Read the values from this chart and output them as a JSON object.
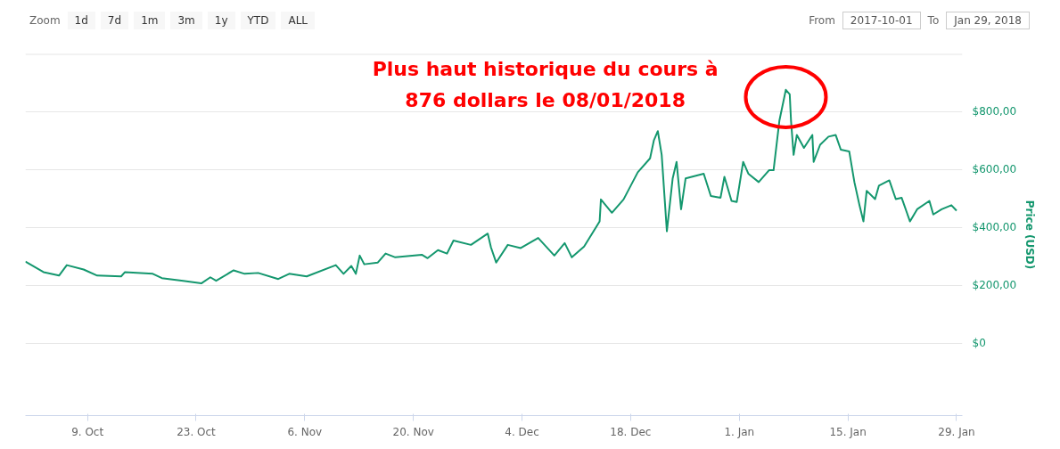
{
  "chart_data": {
    "type": "line",
    "ylabel": "Price (USD)",
    "x": [
      "2017-10-01T00:00",
      "2017-10-03T08:00",
      "2017-10-05T08:00",
      "2017-10-06T08:00",
      "2017-10-08T12:00",
      "2017-10-10T06:00",
      "2017-10-13T08:00",
      "2017-10-13T20:00",
      "2017-10-17T10:00",
      "2017-10-18T14:00",
      "2017-10-21T08:00",
      "2017-10-23T16:00",
      "2017-10-24T20:00",
      "2017-10-25T14:00",
      "2017-10-27T20:00",
      "2017-10-29T06:00",
      "2017-10-31T00:00",
      "2017-11-02T14:00",
      "2017-11-04T00:00",
      "2017-11-06T06:00",
      "2017-11-10T00:00",
      "2017-11-11T00:00",
      "2017-11-12T00:00",
      "2017-11-12T14:00",
      "2017-11-13T02:00",
      "2017-11-13T16:00",
      "2017-11-15T10:00",
      "2017-11-16T10:00",
      "2017-11-17T16:00",
      "2017-11-21T02:00",
      "2017-11-21T20:00",
      "2017-11-23T04:00",
      "2017-11-24T08:00",
      "2017-11-25T04:00",
      "2017-11-27T10:00",
      "2017-11-29T14:00",
      "2017-11-30T00:00",
      "2017-11-30T16:00",
      "2017-12-02T04:00",
      "2017-12-03T20:00",
      "2017-12-06T02:00",
      "2017-12-08T04:00",
      "2017-12-09T12:00",
      "2017-12-10T10:00",
      "2017-12-12T00:00",
      "2017-12-14T00:00",
      "2017-12-14T04:00",
      "2017-12-15T14:00",
      "2017-12-17T02:00",
      "2017-12-18T22:00",
      "2017-12-20T12:00",
      "2017-12-21T00:00",
      "2017-12-21T12:00",
      "2017-12-22T00:00",
      "2017-12-22T16:00",
      "2017-12-23T10:00",
      "2017-12-23T22:00",
      "2017-12-24T12:00",
      "2017-12-25T02:00",
      "2017-12-27T10:00",
      "2017-12-28T08:00",
      "2017-12-29T14:00",
      "2017-12-30T02:00",
      "2017-12-31T00:00",
      "2017-12-31T16:00",
      "2018-01-01T12:00",
      "2018-01-02T04:00",
      "2018-01-03T12:00",
      "2018-01-04T20:00",
      "2018-01-05T10:00",
      "2018-01-06T04:00",
      "2018-01-07T00:00",
      "2018-01-07T12:00",
      "2018-01-07T16:00",
      "2018-01-08T00:00",
      "2018-01-08T10:00",
      "2018-01-09T08:00",
      "2018-01-10T10:00",
      "2018-01-10T14:00",
      "2018-01-11T10:00",
      "2018-01-12T12:00",
      "2018-01-13T10:00",
      "2018-01-14T02:00",
      "2018-01-15T04:00",
      "2018-01-15T20:00",
      "2018-01-16T12:00",
      "2018-01-17T00:00",
      "2018-01-17T10:00",
      "2018-01-18T12:00",
      "2018-01-19T00:00",
      "2018-01-20T08:00",
      "2018-01-21T04:00",
      "2018-01-21T22:00",
      "2018-01-23T00:00",
      "2018-01-23T22:00",
      "2018-01-25T12:00",
      "2018-01-26T00:00",
      "2018-01-27T02:00",
      "2018-01-28T08:00",
      "2018-01-29T00:00"
    ],
    "series": [
      {
        "color": "#14976e",
        "values": [
          282,
          246,
          234,
          270,
          255,
          234,
          231,
          246,
          240,
          225,
          216,
          207,
          228,
          216,
          252,
          240,
          243,
          222,
          240,
          231,
          270,
          240,
          267,
          240,
          303,
          273,
          279,
          310,
          297,
          306,
          294,
          322,
          310,
          355,
          340,
          379,
          331,
          279,
          340,
          329,
          364,
          303,
          346,
          297,
          334,
          421,
          497,
          451,
          497,
          591,
          639,
          702,
          733,
          651,
          387,
          570,
          627,
          463,
          570,
          586,
          509,
          503,
          575,
          492,
          488,
          627,
          586,
          557,
          598,
          598,
          769,
          876,
          860,
          769,
          651,
          720,
          675,
          720,
          627,
          686,
          714,
          720,
          669,
          663,
          557,
          476,
          421,
          527,
          498,
          545,
          563,
          498,
          503,
          421,
          463,
          492,
          445,
          463,
          477,
          458
        ]
      }
    ],
    "xlim": [
      "2017-10-01T00:00",
      "2018-01-29T18:00"
    ],
    "xticks": [
      {
        "value": "2017-10-09",
        "label": "9. Oct"
      },
      {
        "value": "2017-10-23",
        "label": "23. Oct"
      },
      {
        "value": "2017-11-06",
        "label": "6. Nov"
      },
      {
        "value": "2017-11-20",
        "label": "20. Nov"
      },
      {
        "value": "2017-12-04",
        "label": "4. Dec"
      },
      {
        "value": "2017-12-18",
        "label": "18. Dec"
      },
      {
        "value": "2018-01-01",
        "label": "1. Jan"
      },
      {
        "value": "2018-01-15",
        "label": "15. Jan"
      },
      {
        "value": "2018-01-29",
        "label": "29. Jan"
      }
    ],
    "ylim": [
      -250,
      1000
    ],
    "yticks": [
      {
        "value": 0,
        "label": "$0"
      },
      {
        "value": 200,
        "label": "$200,00"
      },
      {
        "value": 400,
        "label": "$400,00"
      },
      {
        "value": 600,
        "label": "$600,00"
      },
      {
        "value": 800,
        "label": "$800,00"
      },
      {
        "value": 1000,
        "label": null
      }
    ],
    "grid": "y",
    "marker": "none",
    "line_style": "solid",
    "annotations": [
      "Plus haut historique du cours à\n876 dollars le 08/01/2018",
      "Zoom",
      "1d",
      "7d",
      "1m",
      "3m",
      "1y",
      "YTD",
      "ALL",
      "From",
      "2017-10-01",
      "To",
      "Jan 29, 2018"
    ]
  }
}
